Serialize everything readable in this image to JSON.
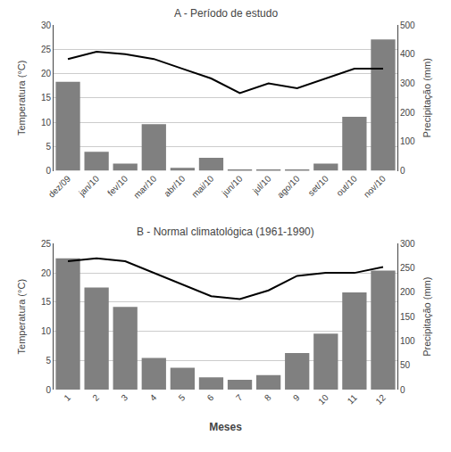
{
  "chart_data": [
    {
      "type": "bar",
      "title": "A - Período de estudo",
      "categories": [
        "dez/09",
        "jan/10",
        "fev/10",
        "mar/10",
        "abr/10",
        "mai/10",
        "jun/10",
        "jul/10",
        "ago/10",
        "set/10",
        "out/10",
        "nov/10"
      ],
      "ylabel": "Temperatura (°C)",
      "y2label": "Precipitação (mm)",
      "ylim": [
        0,
        30
      ],
      "yticks": [
        0,
        5,
        10,
        15,
        20,
        25,
        30
      ],
      "y2lim": [
        0,
        500
      ],
      "y2ticks": [
        0,
        100,
        200,
        300,
        400,
        500
      ],
      "grid": true,
      "series": [
        {
          "type": "bar",
          "axis": "y2",
          "color": "#808080",
          "values": [
            305,
            65,
            25,
            160,
            10,
            45,
            2,
            2,
            2,
            25,
            185,
            450
          ]
        },
        {
          "type": "line",
          "color": "#000000",
          "values": [
            23.0,
            24.5,
            24.0,
            23.0,
            21.0,
            19.0,
            16.0,
            18.0,
            17.0,
            19.0,
            21.0,
            21.0
          ]
        }
      ]
    },
    {
      "type": "bar",
      "title": "B - Normal climatológica (1961-1990)",
      "categories": [
        "1",
        "2",
        "3",
        "4",
        "5",
        "6",
        "7",
        "8",
        "9",
        "10",
        "11",
        "12"
      ],
      "xlabel": "Meses",
      "ylabel": "Temperatura (°C)",
      "y2label": "Precipitação (mm)",
      "ylim": [
        0,
        25
      ],
      "yticks": [
        0,
        5,
        10,
        15,
        20,
        25
      ],
      "y2lim": [
        0,
        300
      ],
      "y2ticks": [
        0,
        50,
        100,
        150,
        200,
        250,
        300
      ],
      "grid": true,
      "series": [
        {
          "type": "bar",
          "axis": "y2",
          "color": "#808080",
          "values": [
            270,
            210,
            170,
            65,
            45,
            25,
            20,
            30,
            75,
            115,
            200,
            245
          ]
        },
        {
          "type": "line",
          "color": "#000000",
          "values": [
            22.0,
            22.5,
            22.0,
            20.0,
            18.0,
            16.0,
            15.5,
            17.0,
            19.5,
            20.0,
            20.0,
            21.0
          ]
        }
      ]
    }
  ]
}
